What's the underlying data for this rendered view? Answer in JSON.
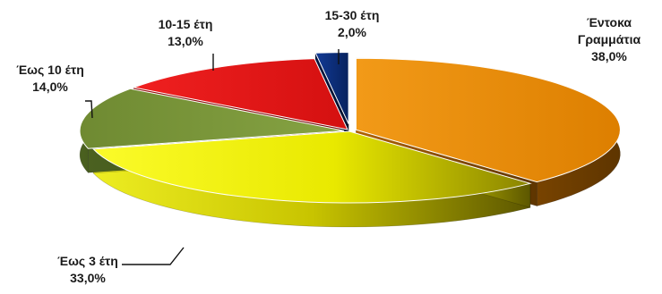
{
  "chart_data": {
    "type": "pie",
    "title": "",
    "slices": [
      {
        "name": "Έντοκα Γραμμάτια",
        "value": 38.0,
        "value_label": "38,0%",
        "color": "#e68a00"
      },
      {
        "name": "Έως 3 έτη",
        "value": 33.0,
        "value_label": "33,0%",
        "color": "#f0f000"
      },
      {
        "name": "Έως 10 έτη",
        "value": 14.0,
        "value_label": "14,0%",
        "color": "#7e9b3a"
      },
      {
        "name": "10-15 έτη",
        "value": 13.0,
        "value_label": "13,0%",
        "color": "#e51b1b"
      },
      {
        "name": "15-30 έτη",
        "value": 2.0,
        "value_label": "2,0%",
        "color": "#0a2a78"
      }
    ],
    "legend": "none",
    "style": "3d-exploded"
  }
}
